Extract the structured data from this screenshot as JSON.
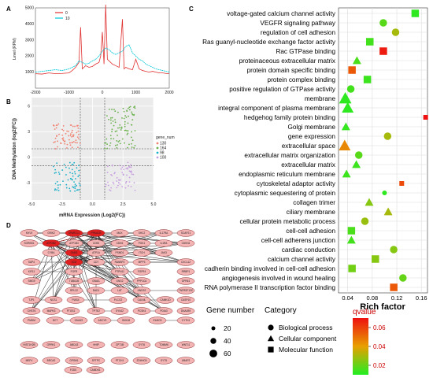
{
  "chart_data": [
    {
      "panel": "A",
      "type": "line",
      "ylabel": "Level (RPM)",
      "x_ticks": [
        "-2000",
        "-1000",
        "0",
        "1000",
        "2000"
      ],
      "y_ticks": [
        "1000",
        "2000",
        "3000",
        "4000",
        "5000"
      ],
      "xlim": [
        -2000,
        2000
      ],
      "ylim": [
        0,
        5000
      ],
      "legend": [
        "0",
        "10"
      ],
      "series": [
        {
          "name": "0",
          "color": "#e03030",
          "x": [
            -2000,
            -1800,
            -1600,
            -1400,
            -1200,
            -1000,
            -900,
            -800,
            -700,
            -650,
            -600,
            -500,
            -400,
            -300,
            -200,
            -100,
            -50,
            0,
            50,
            100,
            150,
            200,
            300,
            400,
            500,
            600,
            650,
            700,
            800,
            900,
            1000,
            1100,
            1200,
            1300,
            1400,
            1500,
            1600,
            1700,
            1800,
            1900,
            2000
          ],
          "y": [
            900,
            880,
            950,
            900,
            920,
            950,
            1100,
            1300,
            1600,
            3800,
            1200,
            1400,
            1300,
            1350,
            1500,
            1600,
            2000,
            3500,
            1500,
            5200,
            1800,
            1700,
            1500,
            1400,
            1300,
            4300,
            1200,
            1300,
            1200,
            1150,
            1800,
            1200,
            1100,
            1050,
            1000,
            1050,
            1000,
            950,
            950,
            920,
            900
          ]
        },
        {
          "name": "10",
          "color": "#00c8d8",
          "x": [
            -2000,
            -1800,
            -1600,
            -1400,
            -1200,
            -1000,
            -900,
            -800,
            -700,
            -600,
            -500,
            -400,
            -300,
            -200,
            -100,
            0,
            100,
            200,
            300,
            400,
            500,
            600,
            700,
            800,
            900,
            1000,
            1100,
            1200,
            1300,
            1400,
            1500,
            1600,
            1700,
            1800,
            1900,
            2000
          ],
          "y": [
            1000,
            1050,
            1100,
            1150,
            1100,
            1200,
            1300,
            1400,
            1700,
            1600,
            1500,
            1550,
            1700,
            1800,
            2000,
            2300,
            2500,
            2400,
            2200,
            2100,
            2200,
            2300,
            2600,
            2700,
            2200,
            2000,
            1800,
            1700,
            1500,
            1400,
            1300,
            1200,
            1150,
            1100,
            1050,
            1000
          ]
        }
      ]
    },
    {
      "panel": "B",
      "type": "scatter",
      "xlabel": "mRNA Expression (Log2(FC))",
      "ylabel": "DNA Methylation (log2(FC))",
      "x_ticks": [
        "-5.0",
        "-2.5",
        "0.0",
        "2.5",
        "5.0"
      ],
      "y_ticks": [
        "-3",
        "0",
        "3",
        "6"
      ],
      "xlim": [
        -5,
        5
      ],
      "ylim": [
        -5,
        7
      ],
      "legend_title": "gene_num",
      "legend": [
        "130",
        "164",
        "98",
        "100"
      ],
      "clusters": [
        {
          "name": "130",
          "color": "#f08070",
          "x_range": [
            -3.2,
            -1.0
          ],
          "y_range": [
            1,
            4
          ],
          "n": 70
        },
        {
          "name": "164",
          "color": "#6ab04c",
          "x_range": [
            1.0,
            3.5
          ],
          "y_range": [
            1,
            6
          ],
          "n": 90
        },
        {
          "name": "98",
          "color": "#1ab0c8",
          "x_range": [
            -3.2,
            -1.0
          ],
          "y_range": [
            -4,
            -0.5
          ],
          "n": 60
        },
        {
          "name": "100",
          "color": "#c89ee0",
          "x_range": [
            1.0,
            3.5
          ],
          "y_range": [
            -4,
            -0.5
          ],
          "n": 60
        }
      ],
      "thresholds": {
        "x": [
          -1,
          1
        ],
        "y": [
          1,
          -1
        ]
      }
    },
    {
      "panel": "C",
      "type": "scatter",
      "xlabel": "Rich factor",
      "x_ticks": [
        "0.04",
        "0.08",
        "0.12",
        "0.16"
      ],
      "xlim": [
        0.025,
        0.17
      ],
      "terms": [
        {
          "term": "voltage-gated calcium channel activity",
          "rich": 0.15,
          "shape": "square",
          "q": 0.012,
          "count": 40
        },
        {
          "term": "VEGFR signaling pathway",
          "rich": 0.098,
          "shape": "circle",
          "q": 0.018,
          "count": 40
        },
        {
          "term": "regulation of cell adhesion",
          "rich": 0.118,
          "shape": "circle",
          "q": 0.03,
          "count": 40
        },
        {
          "term": "Ras guanyl-nucleotide exchange factor activity",
          "rich": 0.076,
          "shape": "square",
          "q": 0.015,
          "count": 40
        },
        {
          "term": "Rac GTPase binding",
          "rich": 0.098,
          "shape": "square",
          "q": 0.068,
          "count": 40
        },
        {
          "term": "proteinaceous extracellular matrix",
          "rich": 0.055,
          "shape": "triangle",
          "q": 0.016,
          "count": 40
        },
        {
          "term": "protein domain specific binding",
          "rich": 0.047,
          "shape": "square",
          "q": 0.055,
          "count": 40
        },
        {
          "term": "protein complex binding",
          "rich": 0.072,
          "shape": "square",
          "q": 0.014,
          "count": 40
        },
        {
          "term": "positive regulation of GTPase activity",
          "rich": 0.045,
          "shape": "circle",
          "q": 0.015,
          "count": 40
        },
        {
          "term": "membrane",
          "rich": 0.036,
          "shape": "triangle",
          "q": 0.012,
          "count": 65
        },
        {
          "term": "integral component of plasma membrane",
          "rich": 0.04,
          "shape": "triangle",
          "q": 0.012,
          "count": 60
        },
        {
          "term": "hedgehog family protein binding",
          "rich": 0.167,
          "shape": "square",
          "q": 0.07,
          "count": 20
        },
        {
          "term": "Golgi membrane",
          "rich": 0.037,
          "shape": "triangle",
          "q": 0.013,
          "count": 40
        },
        {
          "term": "gene expression",
          "rich": 0.105,
          "shape": "circle",
          "q": 0.03,
          "count": 40
        },
        {
          "term": "extracellular space",
          "rich": 0.035,
          "shape": "triangle",
          "q": 0.045,
          "count": 60
        },
        {
          "term": "extracellular matrix organization",
          "rich": 0.058,
          "shape": "circle",
          "q": 0.018,
          "count": 40
        },
        {
          "term": "extracellular matrix",
          "rich": 0.054,
          "shape": "triangle",
          "q": 0.014,
          "count": 40
        },
        {
          "term": "endoplasmic reticulum membrane",
          "rich": 0.038,
          "shape": "triangle",
          "q": 0.014,
          "count": 40
        },
        {
          "term": "cytoskeletal adaptor activity",
          "rich": 0.128,
          "shape": "square",
          "q": 0.058,
          "count": 20
        },
        {
          "term": "cytoplasmic sequestering of protein",
          "rich": 0.1,
          "shape": "circle",
          "q": 0.012,
          "count": 20
        },
        {
          "term": "collagen trimer",
          "rich": 0.075,
          "shape": "triangle",
          "q": 0.025,
          "count": 40
        },
        {
          "term": "ciliary membrane",
          "rich": 0.106,
          "shape": "triangle",
          "q": 0.03,
          "count": 40
        },
        {
          "term": "cellular protein metabolic process",
          "rich": 0.068,
          "shape": "circle",
          "q": 0.028,
          "count": 40
        },
        {
          "term": "cell-cell adhesion",
          "rich": 0.046,
          "shape": "square",
          "q": 0.016,
          "count": 40
        },
        {
          "term": "cell-cell adherens junction",
          "rich": 0.046,
          "shape": "triangle",
          "q": 0.015,
          "count": 40
        },
        {
          "term": "cardiac conduction",
          "rich": 0.115,
          "shape": "circle",
          "q": 0.025,
          "count": 40
        },
        {
          "term": "calcium channel activity",
          "rich": 0.085,
          "shape": "square",
          "q": 0.025,
          "count": 40
        },
        {
          "term": "cadherin binding involved in cell-cell adhesion",
          "rich": 0.047,
          "shape": "square",
          "q": 0.022,
          "count": 40
        },
        {
          "term": "angiogenesis involved in wound healing",
          "rich": 0.13,
          "shape": "circle",
          "q": 0.02,
          "count": 40
        },
        {
          "term": "RNA polymerase II transcription factor binding",
          "rich": 0.115,
          "shape": "square",
          "q": 0.055,
          "count": 40
        }
      ],
      "gene_number_title": "Gene number",
      "gene_number_legend": [
        "20",
        "40",
        "60"
      ],
      "category_title": "Category",
      "categories": [
        {
          "label": "Biological process",
          "shape": "circle"
        },
        {
          "label": "Cellular component",
          "shape": "triangle"
        },
        {
          "label": "Molecular function",
          "shape": "square"
        }
      ],
      "qvalue_title": "qvalue",
      "qvalue_ticks": [
        "0.06",
        "0.04",
        "0.02"
      ],
      "qvalue_range": [
        0.01,
        0.07
      ],
      "colors": {
        "low": "#22ee22",
        "mid": "#e8a000",
        "high": "#ee1111"
      }
    },
    {
      "panel": "D",
      "type": "network",
      "nodes": [
        {
          "label": "MYL9",
          "hub": false
        },
        {
          "label": "GRIK2",
          "hub": false
        },
        {
          "label": "SPARCL1",
          "hub": true
        },
        {
          "label": "PRKACB",
          "hub": true
        },
        {
          "label": "MAX",
          "hub": false
        },
        {
          "label": "SHC2",
          "hub": false
        },
        {
          "label": "IL17RA",
          "hub": false
        },
        {
          "label": "SCAP21",
          "hub": false
        },
        {
          "label": "SORBS1",
          "hub": false
        },
        {
          "label": "ATP2B2",
          "hub": true
        },
        {
          "label": "ATP1B3",
          "hub": false
        },
        {
          "label": "CD93",
          "hub": false
        },
        {
          "label": "CDK6",
          "hub": false
        },
        {
          "label": "PGK1",
          "hub": false
        },
        {
          "label": "IL1RA",
          "hub": false
        },
        {
          "label": "CDKN1",
          "hub": false
        },
        {
          "label": "CYBA",
          "hub": false
        },
        {
          "label": "GNB2",
          "hub": true
        },
        {
          "label": "ATP1A",
          "hub": false
        },
        {
          "label": "PSMD1",
          "hub": false
        },
        {
          "label": "ITCH",
          "hub": false
        },
        {
          "label": "JAK3",
          "hub": false
        },
        {
          "label": "SAP4",
          "hub": false
        },
        {
          "label": "SCD",
          "hub": true
        },
        {
          "label": "CD7",
          "hub": false
        },
        {
          "label": "RANBP2",
          "hub": false
        },
        {
          "label": "MPP3",
          "hub": false
        },
        {
          "label": "CXCL12",
          "hub": false
        },
        {
          "label": "KIF11",
          "hub": false
        },
        {
          "label": "FGFR",
          "hub": false
        },
        {
          "label": "PTPN11",
          "hub": false
        },
        {
          "label": "FGFR4",
          "hub": false
        },
        {
          "label": "RRBP1",
          "hub": false
        },
        {
          "label": "SMG9",
          "hub": false
        },
        {
          "label": "TUBA1B",
          "hub": false
        },
        {
          "label": "GNAI1",
          "hub": false
        },
        {
          "label": "GNG2",
          "hub": false
        },
        {
          "label": "PPP1CA",
          "hub": false
        },
        {
          "label": "GPR61",
          "hub": false
        },
        {
          "label": "RPL22",
          "hub": false
        },
        {
          "label": "DAD1",
          "hub": false
        },
        {
          "label": "LAT",
          "hub": false
        },
        {
          "label": "HNDS2",
          "hub": false
        },
        {
          "label": "TNFRSF13C",
          "hub": false
        },
        {
          "label": "TJP1",
          "hub": false
        },
        {
          "label": "NCS1",
          "hub": false
        },
        {
          "label": "PIAS4",
          "hub": false
        },
        {
          "label": "PLCG2",
          "hub": false
        },
        {
          "label": "CALML",
          "hub": false
        },
        {
          "label": "CAMK1D",
          "hub": false
        },
        {
          "label": "CASP10",
          "hub": false
        },
        {
          "label": "CHST6",
          "hub": false
        },
        {
          "label": "MAPK3",
          "hub": false
        },
        {
          "label": "PTGS1",
          "hub": false
        },
        {
          "label": "TPTE2",
          "hub": false
        },
        {
          "label": "SYNJ2",
          "hub": false
        },
        {
          "label": "PCSK4",
          "hub": false
        },
        {
          "label": "PDIA3",
          "hub": false
        },
        {
          "label": "DNAJB9",
          "hub": false
        },
        {
          "label": "PMDM",
          "hub": false
        },
        {
          "label": "DCT",
          "hub": false
        },
        {
          "label": "GNAZ2",
          "hub": false
        },
        {
          "label": "ADCY9",
          "hub": false
        },
        {
          "label": "SNX18",
          "hub": false
        },
        {
          "label": "ELMO3",
          "hub": false
        },
        {
          "label": "CYTH1",
          "hub": false
        },
        {
          "label": "HIST1H2B",
          "hub": false
        },
        {
          "label": "OPRK1",
          "hub": false
        },
        {
          "label": "ABCA3",
          "hub": false
        },
        {
          "label": "HHIP",
          "hub": false
        },
        {
          "label": "CPT1B",
          "hub": false
        },
        {
          "label": "SYT6",
          "hub": false
        },
        {
          "label": "TOMM6",
          "hub": false
        },
        {
          "label": "WNT11",
          "hub": false
        },
        {
          "label": "MEFV",
          "hub": false
        },
        {
          "label": "BRCA2",
          "hub": false
        },
        {
          "label": "GPSM1",
          "hub": false
        },
        {
          "label": "SFTPC",
          "hub": false
        },
        {
          "label": "PTCH1",
          "hub": false
        },
        {
          "label": "ZDHHC6",
          "hub": false
        },
        {
          "label": "SYT5",
          "hub": false
        },
        {
          "label": "UBAP2",
          "hub": false
        },
        {
          "label": "FZD5",
          "hub": false
        },
        {
          "label": "CAMDK1",
          "hub": false
        }
      ]
    }
  ]
}
